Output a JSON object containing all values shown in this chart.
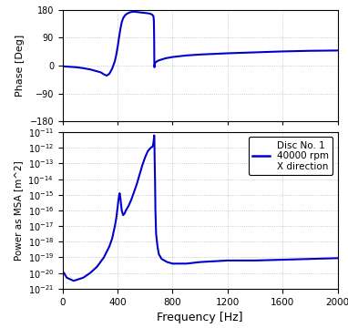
{
  "line_color": "#0000CC",
  "background_color": "#ffffff",
  "grid_color": "#aaaaaa",
  "xlabel": "Frequency [Hz]",
  "ylabel_top": "Phase [Deg]",
  "ylabel_bottom": "Power as MSA [m^2]",
  "xlim": [
    0,
    2000
  ],
  "xticks": [
    0,
    400,
    800,
    1200,
    1600,
    2000
  ],
  "phase_ylim": [
    -180,
    180
  ],
  "phase_yticks": [
    -180,
    -90,
    0,
    90,
    180
  ],
  "psd_ylim_exp": [
    -21,
    -11
  ],
  "psd_yticks_exp": [
    -21,
    -20,
    -19,
    -18,
    -17,
    -16,
    -15,
    -14,
    -13,
    -12,
    -11
  ],
  "legend_text": [
    "Disc No. 1",
    "40000 rpm",
    "X direction"
  ],
  "phase_data_x": [
    0,
    100,
    150,
    200,
    250,
    280,
    300,
    320,
    340,
    360,
    380,
    390,
    400,
    410,
    420,
    430,
    440,
    450,
    460,
    470,
    480,
    490,
    500,
    520,
    540,
    560,
    580,
    600,
    620,
    640,
    650,
    660,
    662,
    664,
    666,
    667,
    668,
    669,
    670,
    672,
    675,
    680,
    690,
    700,
    720,
    750,
    800,
    900,
    1000,
    1200,
    1400,
    1600,
    1800,
    2000
  ],
  "phase_data_y": [
    -2,
    -5,
    -8,
    -12,
    -18,
    -22,
    -28,
    -32,
    -26,
    -10,
    15,
    35,
    60,
    90,
    118,
    140,
    153,
    160,
    165,
    168,
    170,
    172,
    173,
    174,
    173,
    172,
    171,
    170,
    169,
    167,
    165,
    160,
    155,
    140,
    80,
    10,
    -5,
    2,
    5,
    8,
    10,
    12,
    15,
    17,
    20,
    24,
    28,
    33,
    36,
    40,
    43,
    46,
    48,
    49
  ],
  "psd_data_x": [
    10,
    30,
    80,
    150,
    200,
    250,
    300,
    340,
    360,
    380,
    390,
    400,
    405,
    410,
    415,
    420,
    425,
    430,
    440,
    450,
    460,
    480,
    500,
    520,
    540,
    560,
    580,
    600,
    620,
    640,
    655,
    660,
    663,
    665,
    666,
    667,
    668,
    669,
    672,
    675,
    680,
    690,
    700,
    720,
    760,
    800,
    900,
    1000,
    1200,
    1400,
    1600,
    1800,
    2000
  ],
  "psd_data_y_exp": [
    -20.0,
    -20.3,
    -20.5,
    -20.3,
    -20.0,
    -19.6,
    -19.0,
    -18.3,
    -17.8,
    -17.0,
    -16.5,
    -15.8,
    -15.4,
    -15.1,
    -14.9,
    -15.2,
    -15.6,
    -16.0,
    -16.3,
    -16.2,
    -16.0,
    -15.7,
    -15.3,
    -14.8,
    -14.3,
    -13.7,
    -13.1,
    -12.6,
    -12.2,
    -12.0,
    -11.9,
    -11.7,
    -11.5,
    -11.3,
    -11.2,
    -11.35,
    -11.8,
    -12.5,
    -14.0,
    -16.0,
    -17.5,
    -18.3,
    -18.8,
    -19.1,
    -19.3,
    -19.4,
    -19.4,
    -19.3,
    -19.2,
    -19.2,
    -19.15,
    -19.1,
    -19.05
  ]
}
